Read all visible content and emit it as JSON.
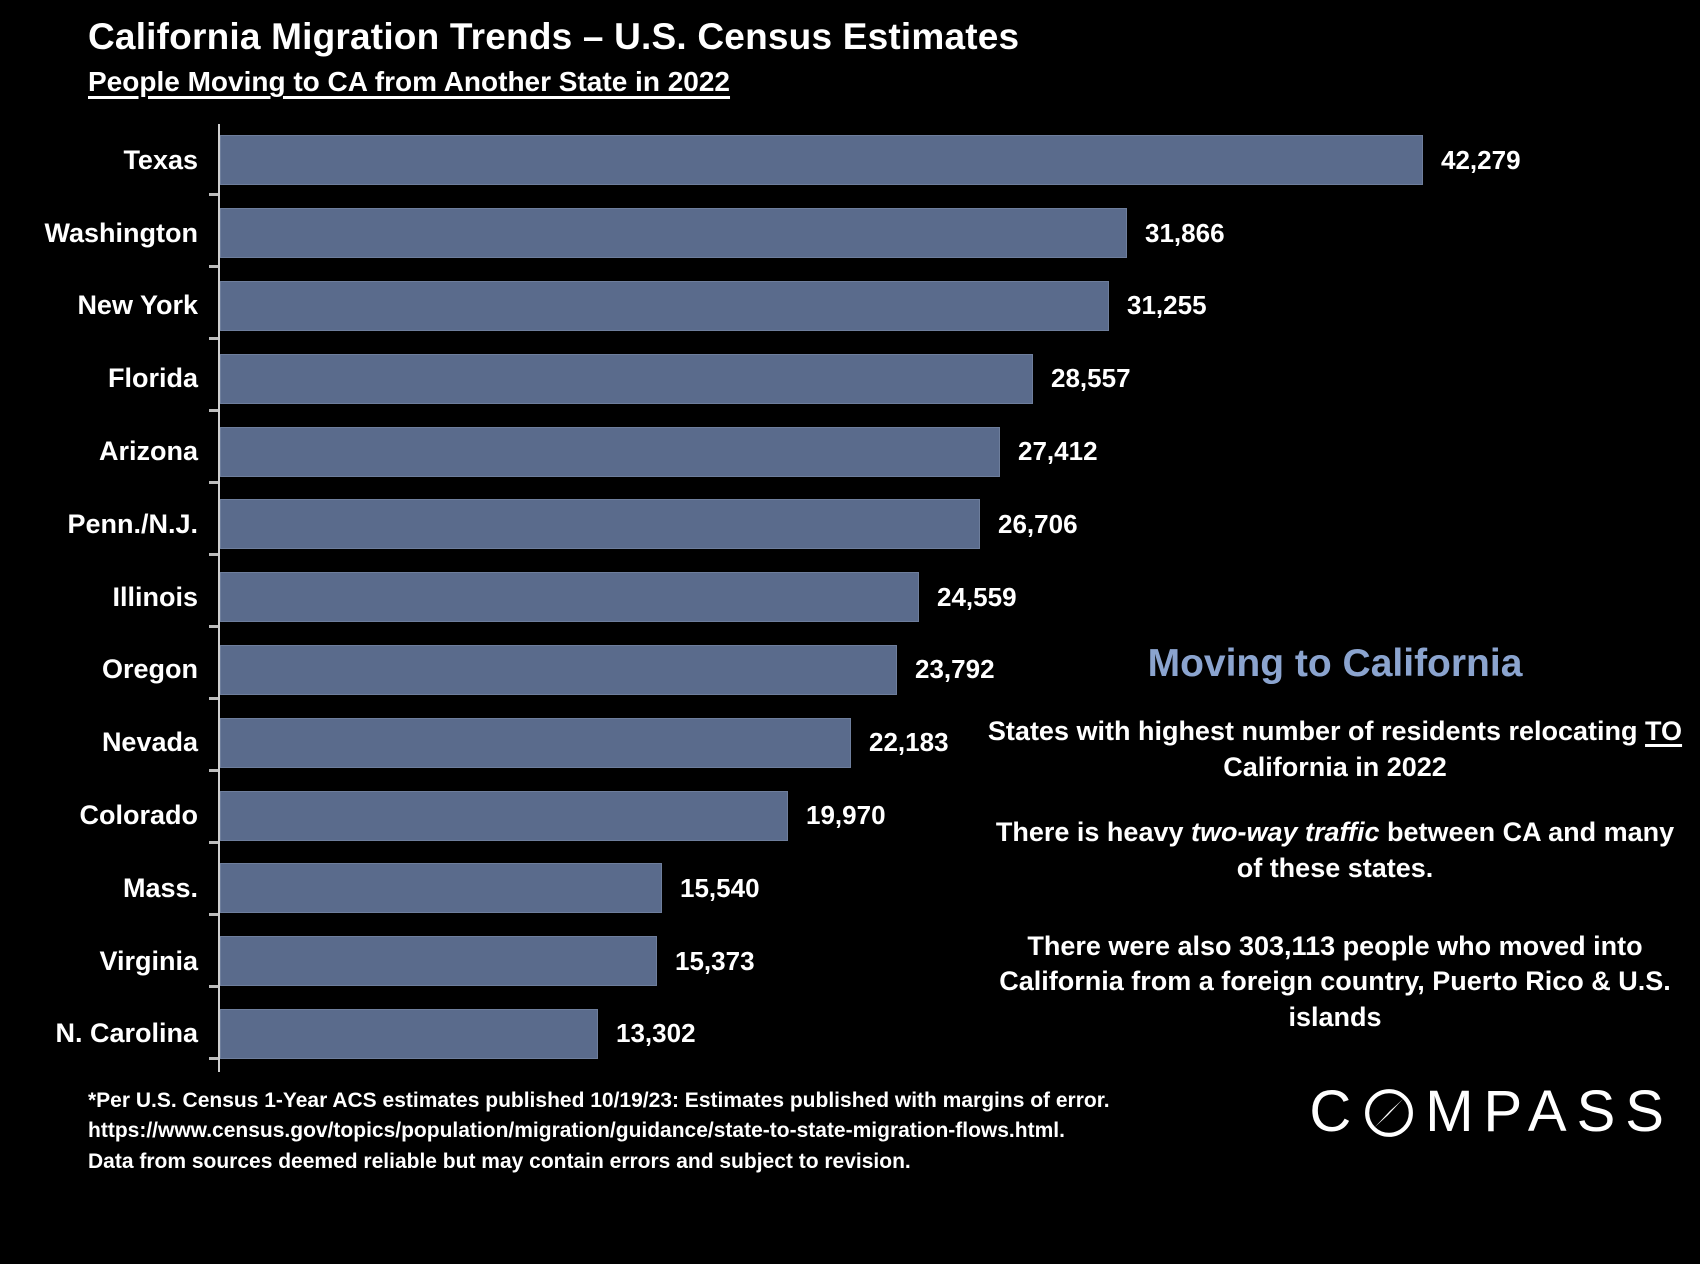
{
  "header": {
    "title": "California Migration Trends – U.S. Census Estimates",
    "subtitle": "People Moving to CA from Another State in 2022"
  },
  "chart_data": {
    "type": "bar",
    "orientation": "horizontal",
    "title": "People Moving to CA from Another State in 2022",
    "xlabel": "",
    "ylabel": "",
    "xlim": [
      0,
      45000
    ],
    "grid": false,
    "legend": "none",
    "bar_color": "#5a6b8c",
    "background": "#000000",
    "categories": [
      "Texas",
      "Washington",
      "New York",
      "Florida",
      "Arizona",
      "Penn./N.J.",
      "Illinois",
      "Oregon",
      "Nevada",
      "Colorado",
      "Mass.",
      "Virginia",
      "N. Carolina"
    ],
    "values": [
      42279,
      31866,
      31255,
      28557,
      27412,
      26706,
      24559,
      23792,
      22183,
      19970,
      15540,
      15373,
      13302
    ],
    "value_labels": [
      "42,279",
      "31,866",
      "31,255",
      "28,557",
      "27,412",
      "26,706",
      "24,559",
      "23,792",
      "22,183",
      "19,970",
      "15,540",
      "15,373",
      "13,302"
    ]
  },
  "side_panel": {
    "heading": "Moving to California",
    "heading_color": "#8ba4cf",
    "p1": {
      "pre": "States with highest number of  residents relocating ",
      "underlined": "TO",
      "post": "  California in 2022"
    },
    "p2": {
      "pre": "There is heavy ",
      "italic": "two-way traffic",
      "post": " between CA and many of these states."
    },
    "p3": "There were also 303,113 people who moved into California from a foreign country, Puerto Rico & U.S. islands"
  },
  "footer": {
    "line1": "*Per U.S. Census 1-Year ACS estimates published 10/19/23: Estimates published with margins of error.",
    "line2": "https://www.census.gov/topics/population/migration/guidance/state-to-state-migration-flows.html.",
    "line3": "Data from sources deemed reliable but may contain errors and subject to revision."
  },
  "logo": {
    "prefix": "C",
    "suffix": "MPASS",
    "name": "COMPASS"
  }
}
